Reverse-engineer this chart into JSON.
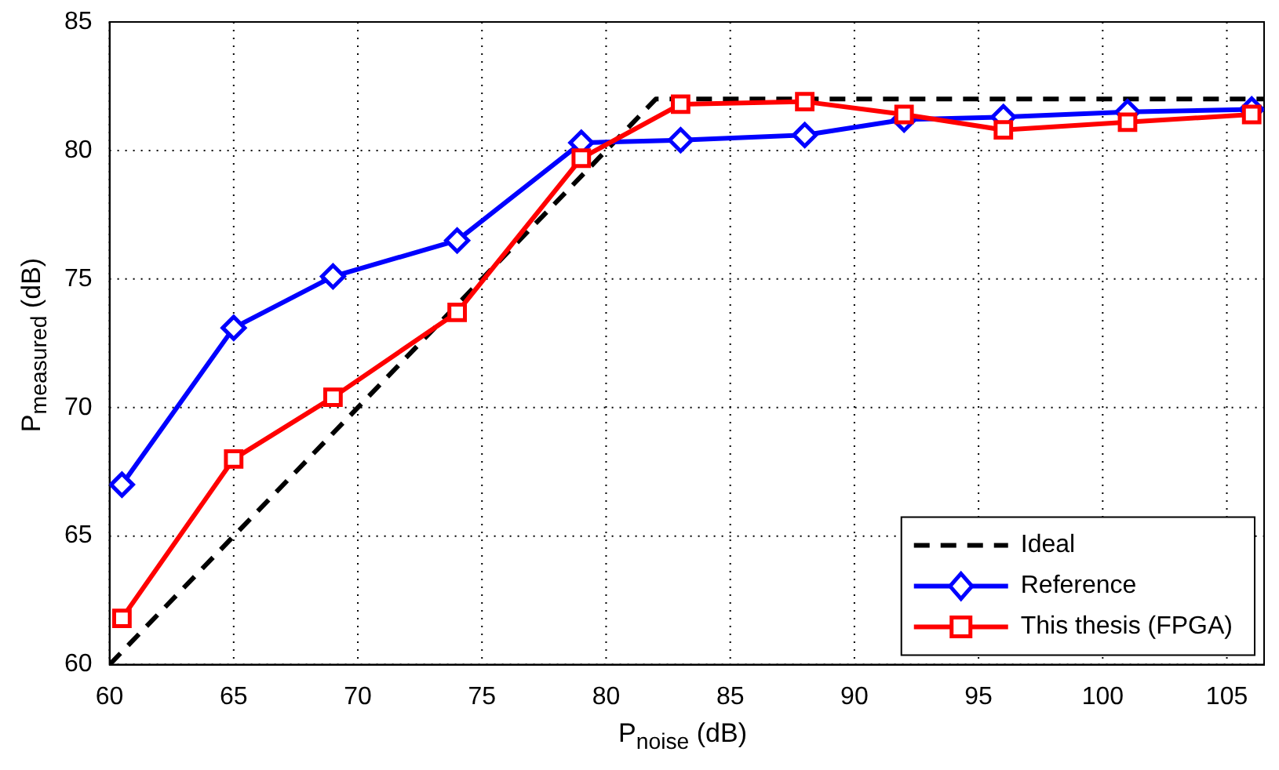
{
  "chart_data": {
    "type": "line",
    "xlabel": "P$_{noise}$ (dB)",
    "ylabel": "P$_{measured}$ (dB)",
    "xlim": [
      60,
      106.5
    ],
    "xticks": [
      60,
      65,
      70,
      75,
      80,
      85,
      90,
      95,
      100,
      105
    ],
    "ylim": [
      60,
      85
    ],
    "yticks": [
      60,
      65,
      70,
      75,
      80,
      85
    ],
    "grid": true,
    "legend": "bottom right",
    "series": [
      {
        "name": "Ideal",
        "color": "#000000",
        "line_style": "dashed",
        "marker": "none",
        "x": [
          60,
          82,
          106.5
        ],
        "values": [
          60,
          82,
          82
        ]
      },
      {
        "name": "Reference",
        "color": "#0000ff",
        "line_style": "solid",
        "marker": "diamond",
        "x": [
          60.5,
          65,
          69,
          74,
          79,
          83,
          88,
          92,
          96,
          101,
          106
        ],
        "values": [
          67.0,
          73.1,
          75.1,
          76.5,
          80.3,
          80.4,
          80.6,
          81.2,
          81.3,
          81.5,
          81.6
        ]
      },
      {
        "name": "This thesis (FPGA)",
        "color": "#ff0000",
        "line_style": "solid",
        "marker": "square",
        "x": [
          60.5,
          65,
          69,
          74,
          79,
          83,
          88,
          92,
          96,
          101,
          106
        ],
        "values": [
          61.8,
          68.0,
          70.4,
          73.7,
          79.7,
          81.8,
          81.9,
          81.4,
          80.8,
          81.1,
          81.4
        ]
      }
    ]
  }
}
